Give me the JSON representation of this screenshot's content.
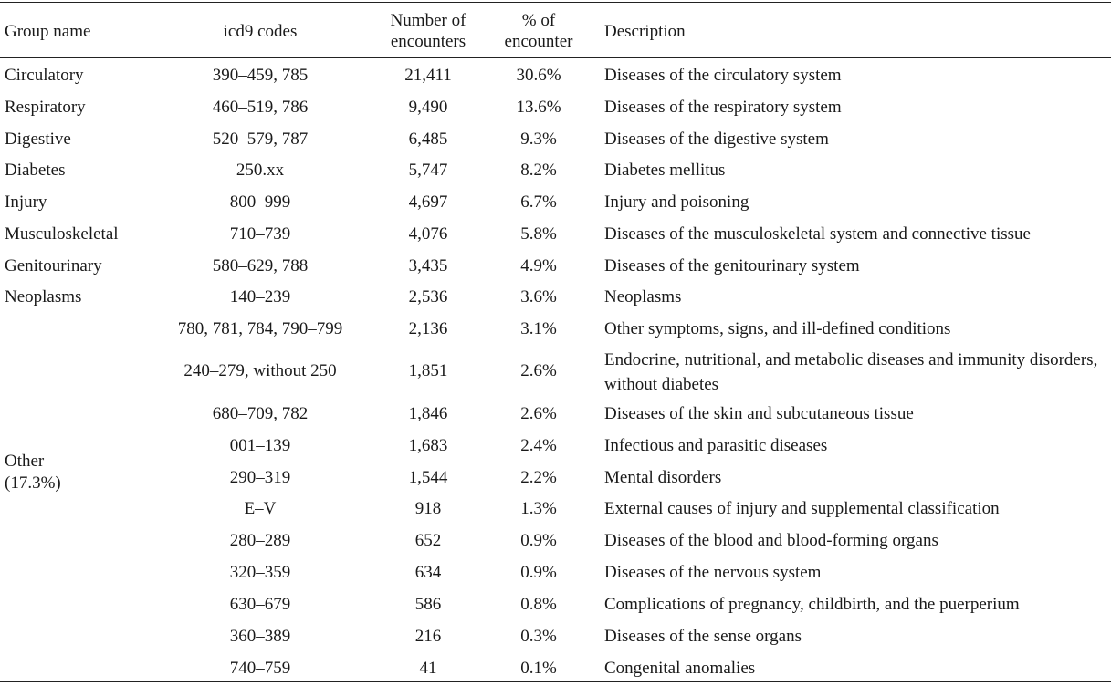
{
  "headers": {
    "group": "Group name",
    "codes": "icd9 codes",
    "encounters_1": "Number of",
    "encounters_2": "encounters",
    "pct_1": "% of",
    "pct_2": "encounter",
    "description": "Description"
  },
  "rows": [
    {
      "group": "Circulatory",
      "codes": "390–459, 785",
      "count": "21,411",
      "pct": "30.6%",
      "desc": "Diseases of the circulatory system"
    },
    {
      "group": "Respiratory",
      "codes": "460–519, 786",
      "count": "9,490",
      "pct": "13.6%",
      "desc": "Diseases of the respiratory system"
    },
    {
      "group": "Digestive",
      "codes": "520–579, 787",
      "count": "6,485",
      "pct": "9.3%",
      "desc": "Diseases of the digestive system"
    },
    {
      "group": "Diabetes",
      "codes": "250.xx",
      "count": "5,747",
      "pct": "8.2%",
      "desc": "Diabetes mellitus"
    },
    {
      "group": "Injury",
      "codes": "800–999",
      "count": "4,697",
      "pct": "6.7%",
      "desc": "Injury and poisoning"
    },
    {
      "group": "Musculoskeletal",
      "codes": "710–739",
      "count": "4,076",
      "pct": "5.8%",
      "desc": "Diseases of the musculoskeletal system and connective tissue"
    },
    {
      "group": "Genitourinary",
      "codes": "580–629, 788",
      "count": "3,435",
      "pct": "4.9%",
      "desc": "Diseases of the genitourinary system"
    },
    {
      "group": "Neoplasms",
      "codes": "140–239",
      "count": "2,536",
      "pct": "3.6%",
      "desc": "Neoplasms"
    },
    {
      "group": "",
      "codes": "780, 781, 784, 790–799",
      "count": "2,136",
      "pct": "3.1%",
      "desc": "Other symptoms, signs, and ill-defined conditions"
    },
    {
      "group": "",
      "codes": "240–279, without 250",
      "count": "1,851",
      "pct": "2.6%",
      "desc": "Endocrine, nutritional, and metabolic diseases and immunity disorders, without diabetes"
    },
    {
      "group": "",
      "codes": "680–709, 782",
      "count": "1,846",
      "pct": "2.6%",
      "desc": "Diseases of the skin and subcutaneous tissue"
    },
    {
      "group": "",
      "codes": "001–139",
      "count": "1,683",
      "pct": "2.4%",
      "desc": "Infectious and parasitic diseases"
    },
    {
      "group": "",
      "codes": "290–319",
      "count": "1,544",
      "pct": "2.2%",
      "desc": "Mental disorders"
    },
    {
      "group": "",
      "codes": "E–V",
      "count": "918",
      "pct": "1.3%",
      "desc": "External causes of injury and supplemental classification"
    },
    {
      "group": "",
      "codes": "280–289",
      "count": "652",
      "pct": "0.9%",
      "desc": "Diseases of the blood and blood-forming organs"
    },
    {
      "group": "",
      "codes": "320–359",
      "count": "634",
      "pct": "0.9%",
      "desc": "Diseases of the nervous system"
    },
    {
      "group": "",
      "codes": "630–679",
      "count": "586",
      "pct": "0.8%",
      "desc": "Complications of pregnancy, childbirth, and the puerperium"
    },
    {
      "group": "",
      "codes": "360–389",
      "count": "216",
      "pct": "0.3%",
      "desc": "Diseases of the sense organs"
    },
    {
      "group": "",
      "codes": "740–759",
      "count": "41",
      "pct": "0.1%",
      "desc": "Congenital anomalies"
    }
  ],
  "other_group": {
    "name": "Other",
    "pct": "(17.3%)"
  }
}
